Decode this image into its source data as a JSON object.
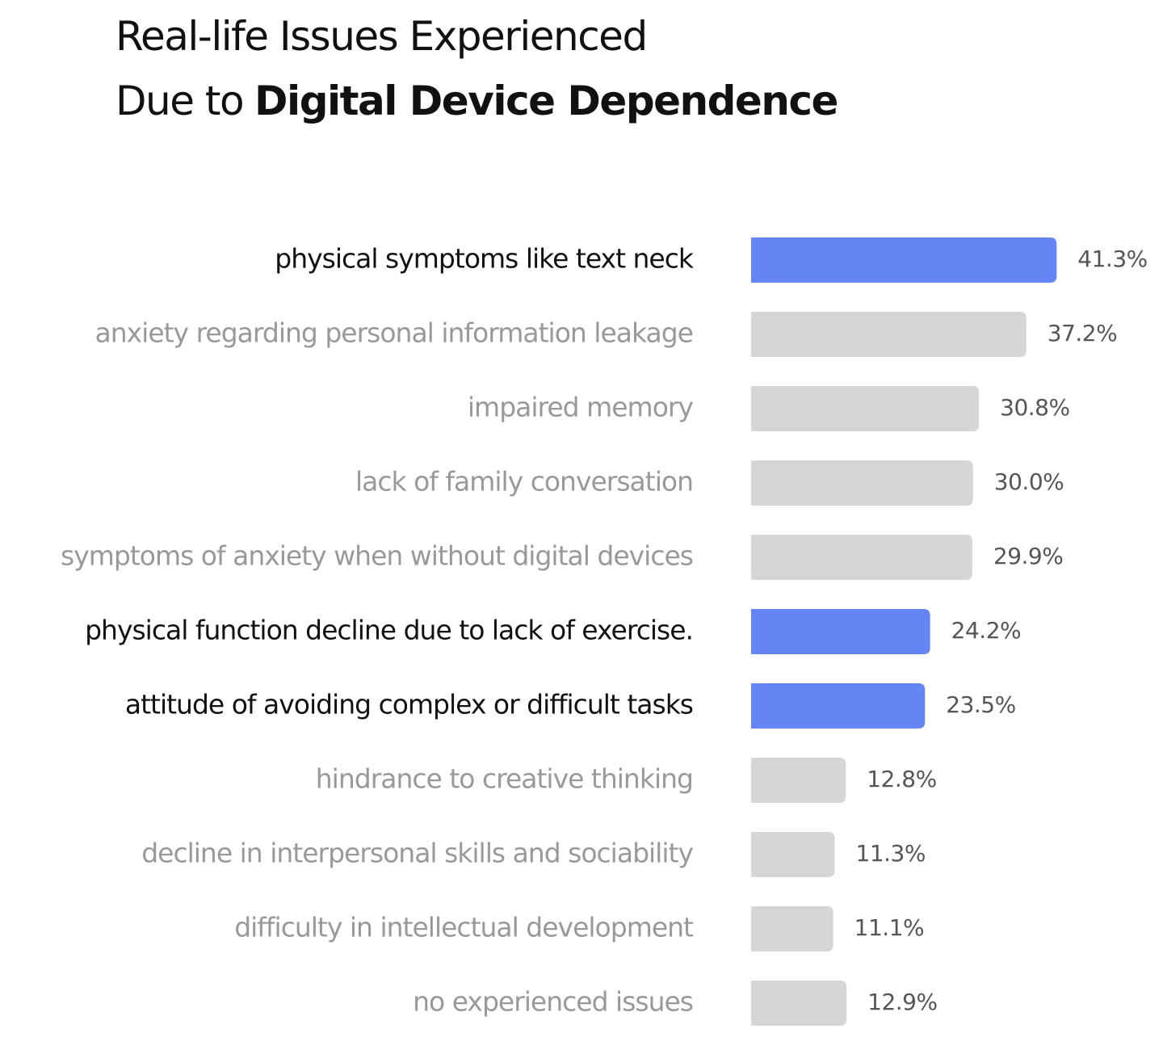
{
  "chart_data": {
    "type": "bar",
    "orientation": "horizontal",
    "title": [
      "Real-life Issues Experienced",
      "Due to",
      "Digital Device Dependence"
    ],
    "title_bold": [
      false,
      false,
      true
    ],
    "categories": [
      "physical symptoms like text neck",
      "anxiety regarding personal information leakage",
      "impaired memory",
      "lack of family conversation",
      "symptoms of anxiety when without digital devices",
      "physical function decline due to lack of exercise.",
      "attitude of avoiding complex or difficult tasks",
      "hindrance to creative thinking",
      "decline in interpersonal skills and sociability",
      "difficulty in intellectual development",
      "no experienced issues"
    ],
    "values": [
      41.3,
      37.2,
      30.8,
      30.0,
      29.9,
      24.2,
      23.5,
      12.8,
      11.3,
      11.1,
      12.9
    ],
    "value_labels": [
      "41.3%",
      "37.2%",
      "30.8%",
      "30.0%",
      "29.9%",
      "24.2%",
      "23.5%",
      "12.8%",
      "11.3%",
      "11.1%",
      "12.9%"
    ],
    "highlight": [
      true,
      false,
      false,
      false,
      false,
      true,
      true,
      false,
      false,
      false,
      false
    ],
    "highlight_color": "#6685f5",
    "color": "#d6d6d6",
    "xlim": [
      0,
      50
    ],
    "grid": false
  }
}
